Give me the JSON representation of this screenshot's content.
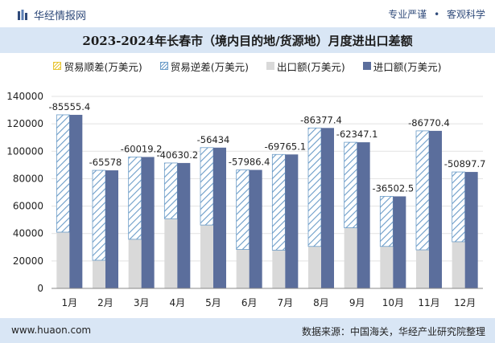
{
  "header": {
    "brand": "华经情报网",
    "tag1": "专业严谨",
    "tag2": "客观科学"
  },
  "title": "2023-2024年长春市（境内目的地/货源地）月度进出口差额",
  "footer": {
    "url": "www.huaon.com",
    "source": "数据来源：中国海关，华经产业研究院整理"
  },
  "colors": {
    "export": "#d9d9d9",
    "import": "#5b6e9c",
    "surplus_hatch": "#e8c532",
    "deficit_hatch": "#6b9cc8",
    "band": "#d9e6f5"
  },
  "chart_data": {
    "type": "bar",
    "categories": [
      "1月",
      "2月",
      "3月",
      "4月",
      "5月",
      "6月",
      "7月",
      "8月",
      "9月",
      "10月",
      "11月",
      "12月"
    ],
    "legend": [
      "贸易顺差(万美元)",
      "贸易逆差(万美元)",
      "出口额(万美元)",
      "进口额(万美元)"
    ],
    "series": [
      {
        "name": "出口额(万美元)",
        "values": [
          41000,
          20500,
          35800,
          50800,
          46200,
          28400,
          27900,
          30600,
          44200,
          30600,
          28100,
          34000
        ]
      },
      {
        "name": "进口额(万美元)",
        "values": [
          126555,
          86078,
          95819,
          91430,
          102634,
          86386,
          97665,
          116977,
          106547,
          67102,
          114870,
          84898
        ]
      },
      {
        "name": "贸易逆差(万美元)",
        "values": [
          -85555.4,
          -65578,
          -60019.2,
          -40630.2,
          -56434,
          -57986.4,
          -69765.1,
          -86377.4,
          -62347.1,
          -36502.5,
          -86770.4,
          -50897.7
        ]
      }
    ],
    "data_labels": [
      "-85555.4",
      "-65578",
      "-60019.2",
      "-40630.2",
      "-56434",
      "-57986.4",
      "-69765.1",
      "-86377.4",
      "-62347.1",
      "-36502.5",
      "-86770.4",
      "-50897.7"
    ],
    "yticks": [
      "140000",
      "120000",
      "100000",
      "80000",
      "60000",
      "40000",
      "20000",
      "0"
    ],
    "ylim": [
      0,
      140000
    ]
  }
}
